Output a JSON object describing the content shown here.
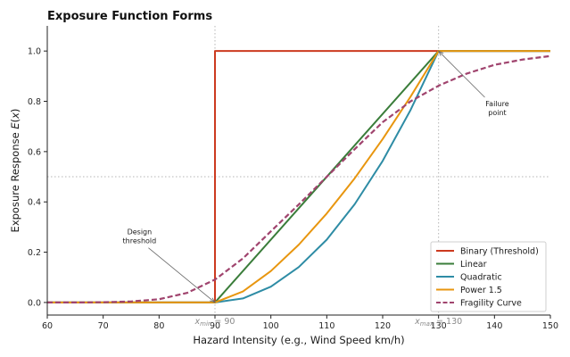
{
  "chart_data": {
    "type": "line",
    "title": "Exposure Function Forms",
    "xlabel": "Hazard Intensity (e.g., Wind Speed km/h)",
    "ylabel_prefix": "Exposure Response ",
    "ylabel_math": "E(x)",
    "xlim": [
      60,
      150
    ],
    "ylim": [
      -0.05,
      1.1
    ],
    "x_ticks": [
      60,
      70,
      80,
      90,
      100,
      110,
      120,
      130,
      140,
      150
    ],
    "x_tick_labels": [
      "60",
      "70",
      "80",
      "90",
      "100",
      "110",
      "120",
      "130",
      "140",
      "150"
    ],
    "y_ticks": [
      0.0,
      0.2,
      0.4,
      0.6,
      0.8,
      1.0
    ],
    "y_tick_labels": [
      "0.0",
      "0.2",
      "0.4",
      "0.6",
      "0.8",
      "1.0"
    ],
    "grid": false,
    "x_min": 90,
    "x_max": 130,
    "reference_y": 0.5,
    "legend_position": "lower-right",
    "series": [
      {
        "name": "Binary (Threshold)",
        "color": "#cc3a1f",
        "style": "solid",
        "x": [
          60,
          90,
          90,
          150
        ],
        "y": [
          0,
          0,
          1,
          1
        ]
      },
      {
        "name": "Linear",
        "color": "#3a7d3a",
        "style": "solid",
        "x": [
          60,
          90,
          130,
          150
        ],
        "y": [
          0,
          0,
          1,
          1
        ]
      },
      {
        "name": "Quadratic",
        "color": "#2e8ca5",
        "style": "solid",
        "x": [
          60,
          90,
          95,
          100,
          105,
          110,
          115,
          120,
          125,
          130,
          150
        ],
        "y": [
          0,
          0,
          0.016,
          0.063,
          0.141,
          0.25,
          0.391,
          0.563,
          0.766,
          1,
          1
        ]
      },
      {
        "name": "Power 1.5",
        "color": "#e8960f",
        "style": "solid",
        "x": [
          60,
          90,
          95,
          100,
          105,
          110,
          115,
          120,
          125,
          130,
          150
        ],
        "y": [
          0,
          0,
          0.044,
          0.125,
          0.23,
          0.354,
          0.494,
          0.65,
          0.819,
          1,
          1
        ]
      },
      {
        "name": "Fragility Curve",
        "color": "#a0446e",
        "style": "dashed",
        "x": [
          60,
          65,
          70,
          75,
          80,
          85,
          90,
          95,
          100,
          105,
          110,
          115,
          120,
          125,
          130,
          135,
          140,
          145,
          150
        ],
        "y": [
          0.0,
          0.0,
          0.001,
          0.004,
          0.013,
          0.038,
          0.091,
          0.175,
          0.283,
          0.39,
          0.5,
          0.61,
          0.717,
          0.8,
          0.862,
          0.91,
          0.945,
          0.966,
          0.98
        ]
      }
    ],
    "annotations": [
      {
        "id": "design",
        "lines": [
          "Design",
          "threshold"
        ],
        "point": [
          90,
          0.0
        ],
        "text_at": [
          76.5,
          0.26
        ]
      },
      {
        "id": "failure",
        "lines": [
          "Failure",
          "point"
        ],
        "point": [
          130,
          1.0
        ],
        "text_at": [
          140.5,
          0.77
        ]
      }
    ],
    "marker_labels": {
      "xmin": {
        "sym": "x",
        "sub": "min",
        "rest": " = 90"
      },
      "xmax": {
        "sym": "x",
        "sub": "max",
        "rest": " = 130"
      }
    }
  }
}
